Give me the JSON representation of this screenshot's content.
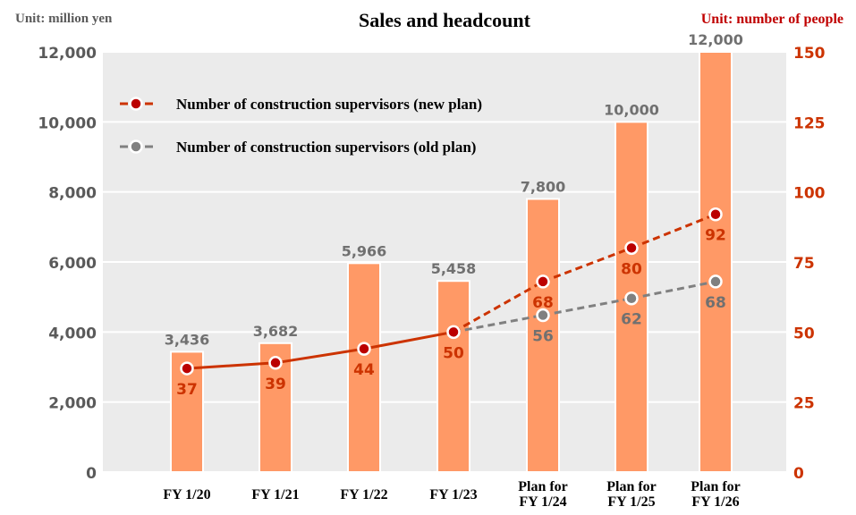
{
  "chart_data": {
    "type": "bar+line",
    "title": "Sales and headcount",
    "left_axis_unit": "Unit: million yen",
    "right_axis_unit": "Unit: number of people",
    "categories": [
      "FY 1/20",
      "FY 1/21",
      "FY 1/22",
      "FY 1/23",
      "Plan for FY 1/24",
      "Plan for FY 1/25",
      "Plan for FY 1/26"
    ],
    "category_lines": [
      [
        "FY 1/20"
      ],
      [
        "FY 1/21"
      ],
      [
        "FY 1/22"
      ],
      [
        "FY 1/23"
      ],
      [
        "Plan for",
        "FY 1/24"
      ],
      [
        "Plan for",
        "FY 1/25"
      ],
      [
        "Plan for",
        "FY 1/26"
      ]
    ],
    "ylim_left": [
      0,
      12000
    ],
    "left_ticks": [
      "0",
      "2,000",
      "4,000",
      "6,000",
      "8,000",
      "10,000",
      "12,000"
    ],
    "ylim_right": [
      0,
      150
    ],
    "right_ticks": [
      "0",
      "25",
      "50",
      "75",
      "100",
      "125",
      "150"
    ],
    "bars": {
      "values": [
        3436,
        3682,
        5966,
        5458,
        7800,
        10000,
        12000
      ],
      "labels": [
        "3,436",
        "3,682",
        "5,966",
        "5,458",
        "7,800",
        "10,000",
        "12,000"
      ],
      "color": "#FF9966"
    },
    "series": [
      {
        "name": "Number of construction supervisors (new plan)",
        "values": [
          37,
          39,
          44,
          50,
          68,
          80,
          92
        ],
        "labels": [
          "37",
          "39",
          "44",
          "50",
          "68",
          "80",
          "92"
        ],
        "color": "#CC3300",
        "marker_color": "#BB0000",
        "solid_through_index": 3
      },
      {
        "name": "Number of construction supervisors (old plan)",
        "values": [
          null,
          null,
          null,
          50,
          56,
          62,
          68
        ],
        "labels": [
          "",
          "",
          "",
          "",
          "56",
          "62",
          "68"
        ],
        "color": "#808080",
        "marker_color": "#808080",
        "solid_through_index": -1
      }
    ],
    "grid": true,
    "legend_position": "top-left",
    "colors": {
      "plot_background": "#EBEBEB",
      "left_axis_text": "#5A5A5A",
      "right_axis_text": "#CC3300",
      "right_unit_text": "#C00000"
    }
  }
}
